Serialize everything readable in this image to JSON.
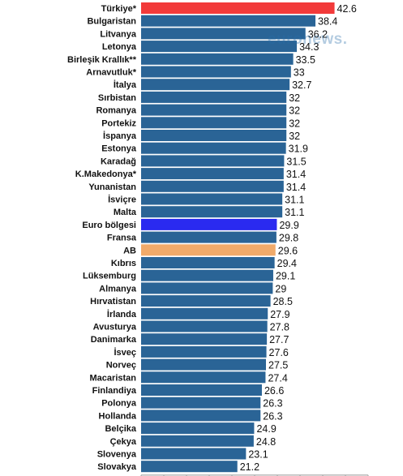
{
  "watermark": "euronews.",
  "chart_data": {
    "type": "bar",
    "orientation": "horizontal",
    "categories": [
      "Türkiye*",
      "Bulgaristan",
      "Litvanya",
      "Letonya",
      "Birleşik Krallık**",
      "Arnavutluk*",
      "İtalya",
      "Sırbistan",
      "Romanya",
      "Portekiz",
      "İspanya",
      "Estonya",
      "Karadağ",
      "K.Makedonya*",
      "Yunanistan",
      "İsviçre",
      "Malta",
      "Euro bölgesi",
      "Fransa",
      "AB",
      "Kıbrıs",
      "Lüksemburg",
      "Almanya",
      "Hırvatistan",
      "İrlanda",
      "Avusturya",
      "Danimarka",
      "İsveç",
      "Norveç",
      "Macaristan",
      "Finlandiya",
      "Polonya",
      "Hollanda",
      "Belçika",
      "Çekya",
      "Slovenya",
      "Slovakya"
    ],
    "values": [
      42.6,
      38.4,
      36.2,
      34.3,
      33.5,
      33,
      32.7,
      32,
      32,
      32,
      32,
      31.9,
      31.5,
      31.4,
      31.4,
      31.1,
      31.1,
      29.9,
      29.8,
      29.6,
      29.4,
      29.1,
      29,
      28.5,
      27.9,
      27.8,
      27.7,
      27.6,
      27.5,
      27.4,
      26.6,
      26.3,
      26.3,
      24.9,
      24.8,
      23.1,
      21.2
    ],
    "value_labels": [
      "42.6",
      "38.4",
      "36.2",
      "34.3",
      "33.5",
      "33",
      "32.7",
      "32",
      "32",
      "32",
      "32",
      "31.9",
      "31.5",
      "31.4",
      "31.4",
      "31.1",
      "31.1",
      "29.9",
      "29.8",
      "29.6",
      "29.4",
      "29.1",
      "29",
      "28.5",
      "27.9",
      "27.8",
      "27.7",
      "27.6",
      "27.5",
      "27.4",
      "26.6",
      "26.3",
      "26.3",
      "24.9",
      "24.8",
      "23.1",
      "21.2"
    ],
    "xlim": [
      0,
      50
    ],
    "x_ticks": [
      "0",
      "5",
      "10",
      "15",
      "20",
      "25",
      "30",
      "35",
      "40",
      "45",
      "50"
    ],
    "title": "",
    "xlabel": "",
    "ylabel": "",
    "grid": false,
    "legend": "none",
    "colors": {
      "default": "#2a6496",
      "highlights": {
        "Türkiye*": "#f23a3a",
        "Euro bölgesi": "#2a2af0",
        "AB": "#f0aa6a"
      }
    }
  }
}
